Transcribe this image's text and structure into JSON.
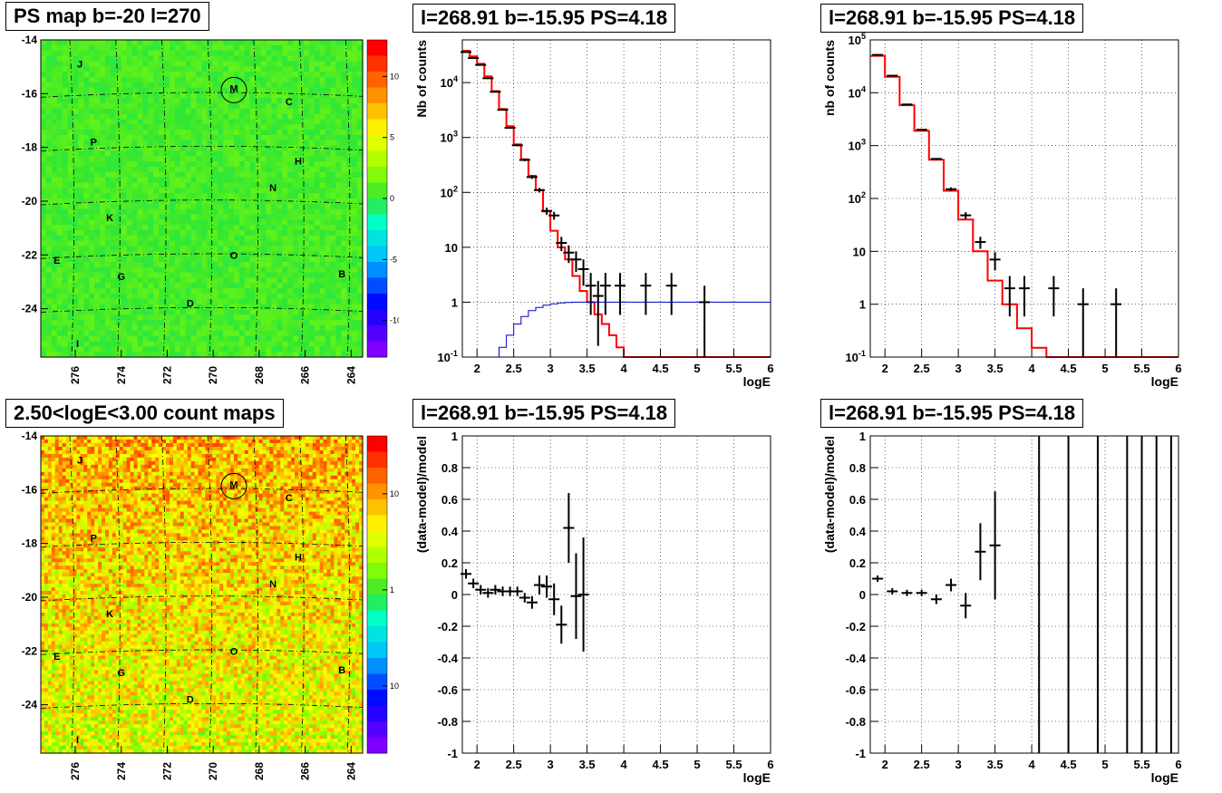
{
  "panels": {
    "tl": {
      "title": "PS map b=-20 l=270",
      "chart_data": {
        "type": "heatmap",
        "title": "PS map b=-20 l=270",
        "x_ticks": [
          "276",
          "274",
          "272",
          "270",
          "268",
          "266",
          "264"
        ],
        "y_ticks": [
          "-14",
          "-16",
          "-18",
          "-20",
          "-22",
          "-24"
        ],
        "xlim": [
          277.5,
          263.5
        ],
        "ylim": [
          -25.8,
          -14
        ],
        "colorbar_ticks": [
          "10",
          "5",
          "0",
          "-5",
          "-10"
        ],
        "colorbar_range": [
          -13,
          13
        ],
        "colormap": "rainbow",
        "sources": [
          {
            "label": "J",
            "l": 275.8,
            "b": -14.9
          },
          {
            "label": "M",
            "l": 269.1,
            "b": -15.8,
            "circled": true
          },
          {
            "label": "C",
            "l": 266.7,
            "b": -16.3
          },
          {
            "label": "P",
            "l": 275.2,
            "b": -17.8
          },
          {
            "label": "H",
            "l": 266.3,
            "b": -18.5
          },
          {
            "label": "N",
            "l": 267.4,
            "b": -19.5
          },
          {
            "label": "K",
            "l": 274.5,
            "b": -20.6
          },
          {
            "label": "E",
            "l": 276.8,
            "b": -22.2
          },
          {
            "label": "O",
            "l": 269.1,
            "b": -22.0
          },
          {
            "label": "G",
            "l": 274.0,
            "b": -22.8
          },
          {
            "label": "B",
            "l": 264.4,
            "b": -22.7
          },
          {
            "label": "D",
            "l": 271.0,
            "b": -23.8
          },
          {
            "label": "I",
            "l": 275.9,
            "b": -25.3
          }
        ],
        "dominant_color": "#30e030"
      }
    },
    "tr_mid": {
      "title": "l=268.91 b=-15.95 PS=4.18",
      "chart_data": {
        "type": "line",
        "title": "l=268.91 b=-15.95 PS=4.18",
        "xlabel": "logE",
        "ylabel": "Nb of counts",
        "xlim": [
          1.8,
          6
        ],
        "ylim": [
          0.1,
          60000
        ],
        "log_y": true,
        "x_ticks": [
          "2",
          "2.5",
          "3",
          "3.5",
          "4",
          "4.5",
          "5",
          "5.5",
          "6"
        ],
        "y_ticks": [
          "10^{-1}",
          "1",
          "10",
          "10^{2}",
          "10^{3}",
          "10^{4}"
        ],
        "grid": true,
        "series": [
          {
            "style": "step",
            "color": "#ff0000",
            "x": [
              1.8,
              1.9,
              2.0,
              2.1,
              2.2,
              2.3,
              2.4,
              2.5,
              2.6,
              2.7,
              2.8,
              2.9,
              3.0,
              3.1,
              3.2,
              3.3,
              3.4,
              3.5,
              3.6,
              3.7,
              3.8,
              3.9,
              4.0,
              4.1,
              4.2,
              4.3,
              6.0
            ],
            "values": [
              38000,
              30000,
              22000,
              13000,
              7000,
              3300,
              1600,
              750,
              400,
              200,
              110,
              45,
              20,
              10,
              6,
              3,
              1.6,
              1,
              0.6,
              0.4,
              0.25,
              0.15,
              0.1,
              0.1,
              0.1,
              0.1,
              0.1
            ]
          },
          {
            "style": "step",
            "color": "#0000cc",
            "x": [
              1.8,
              2.2,
              2.3,
              2.4,
              2.5,
              2.6,
              2.7,
              2.8,
              2.9,
              3.0,
              3.1,
              3.2,
              3.3,
              3.4,
              6.0
            ],
            "values": [
              0.1,
              0.1,
              0.15,
              0.25,
              0.4,
              0.55,
              0.7,
              0.8,
              0.88,
              0.93,
              0.97,
              0.99,
              1.0,
              1.0,
              1.0
            ]
          },
          {
            "style": "errorbar",
            "color": "#000000",
            "x": [
              1.85,
              1.95,
              2.05,
              2.15,
              2.25,
              2.35,
              2.45,
              2.55,
              2.65,
              2.75,
              2.85,
              2.95,
              3.05,
              3.15,
              3.25,
              3.35,
              3.45,
              3.55,
              3.65,
              3.75,
              3.95,
              4.3,
              4.65,
              5.1
            ],
            "values": [
              36000,
              28000,
              21000,
              12000,
              6800,
              3200,
              1500,
              720,
              390,
              190,
              110,
              46,
              38,
              12,
              8,
              6,
              4,
              2,
              1.3,
              2,
              2,
              2,
              2,
              1
            ]
          }
        ]
      }
    },
    "tr_right": {
      "title": "l=268.91 b=-15.95 PS=4.18",
      "chart_data": {
        "type": "line",
        "title": "l=268.91 b=-15.95 PS=4.18",
        "xlabel": "logE",
        "ylabel": "nb of counts",
        "xlim": [
          1.8,
          6
        ],
        "ylim": [
          0.1,
          100000
        ],
        "log_y": true,
        "x_ticks": [
          "2",
          "2.5",
          "3",
          "3.5",
          "4",
          "4.5",
          "5",
          "5.5",
          "6"
        ],
        "y_ticks": [
          "10^{-1}",
          "1",
          "10",
          "10^{2}",
          "10^{3}",
          "10^{4}",
          "10^{5}"
        ],
        "grid": true,
        "series": [
          {
            "style": "step",
            "color": "#ff0000",
            "x": [
              1.8,
              2.0,
              2.2,
              2.4,
              2.6,
              2.8,
              3.0,
              3.2,
              3.4,
              3.6,
              3.8,
              4.0,
              4.2,
              4.4,
              6.0
            ],
            "values": [
              50000,
              20000,
              5800,
              1900,
              540,
              140,
              40,
              10,
              2.8,
              1.0,
              0.35,
              0.15,
              0.1,
              0.1,
              0.1
            ]
          },
          {
            "style": "errorbar",
            "color": "#000000",
            "x": [
              1.9,
              2.1,
              2.3,
              2.5,
              2.7,
              2.9,
              3.1,
              3.3,
              3.5,
              3.7,
              3.9,
              4.3,
              4.7,
              5.15
            ],
            "values": [
              52000,
              21000,
              6000,
              2000,
              560,
              150,
              48,
              15,
              7,
              2,
              2,
              2,
              1,
              1
            ]
          }
        ]
      }
    },
    "bl": {
      "title": "2.50<logE<3.00 count maps",
      "chart_data": {
        "type": "heatmap",
        "title": "2.50<logE<3.00 count maps",
        "x_ticks": [
          "276",
          "274",
          "272",
          "270",
          "268",
          "266",
          "264"
        ],
        "y_ticks": [
          "-14",
          "-16",
          "-18",
          "-20",
          "-22",
          "-24"
        ],
        "xlim": [
          277.5,
          263.5
        ],
        "ylim": [
          -25.8,
          -14
        ],
        "colorbar_ticks": [
          "10",
          "1",
          "10^{-1}"
        ],
        "colorbar_range_log": [
          0.02,
          40
        ],
        "colormap": "rainbow",
        "sources": [
          {
            "label": "J",
            "l": 275.8,
            "b": -14.9
          },
          {
            "label": "M",
            "l": 269.1,
            "b": -15.8,
            "circled": true
          },
          {
            "label": "C",
            "l": 266.7,
            "b": -16.3
          },
          {
            "label": "P",
            "l": 275.2,
            "b": -17.8
          },
          {
            "label": "H",
            "l": 266.3,
            "b": -18.5
          },
          {
            "label": "N",
            "l": 267.4,
            "b": -19.5
          },
          {
            "label": "K",
            "l": 274.5,
            "b": -20.6
          },
          {
            "label": "E",
            "l": 276.8,
            "b": -22.2
          },
          {
            "label": "O",
            "l": 269.1,
            "b": -22.0
          },
          {
            "label": "G",
            "l": 274.0,
            "b": -22.8
          },
          {
            "label": "B",
            "l": 264.4,
            "b": -22.7
          },
          {
            "label": "D",
            "l": 271.0,
            "b": -23.8
          },
          {
            "label": "I",
            "l": 275.9,
            "b": -25.3
          }
        ],
        "dominant_color": "#ff8000"
      }
    },
    "br_mid": {
      "title": "l=268.91 b=-15.95 PS=4.18",
      "chart_data": {
        "type": "scatter",
        "title": "l=268.91 b=-15.95 PS=4.18",
        "xlabel": "logE",
        "ylabel": "(data-model)/model",
        "xlim": [
          1.8,
          6
        ],
        "ylim": [
          -1,
          1
        ],
        "x_ticks": [
          "2",
          "2.5",
          "3",
          "3.5",
          "4",
          "4.5",
          "5",
          "5.5",
          "6"
        ],
        "y_ticks": [
          "1",
          "0.8",
          "0.6",
          "0.4",
          "0.2",
          "0",
          "-0.2",
          "-0.4",
          "-0.6",
          "-0.8",
          "-1"
        ],
        "grid": true,
        "series": [
          {
            "style": "errorbar",
            "color": "#000000",
            "x": [
              1.85,
              1.95,
              2.05,
              2.15,
              2.25,
              2.35,
              2.45,
              2.55,
              2.65,
              2.75,
              2.85,
              2.95,
              3.05,
              3.15,
              3.25,
              3.35,
              3.45
            ],
            "values": [
              0.13,
              0.07,
              0.03,
              0.01,
              0.03,
              0.02,
              0.02,
              0.02,
              -0.02,
              -0.05,
              0.06,
              0.05,
              -0.03,
              -0.19,
              0.42,
              -0.01,
              0.0
            ],
            "errors": [
              0.03,
              0.03,
              0.03,
              0.03,
              0.03,
              0.03,
              0.03,
              0.03,
              0.03,
              0.04,
              0.06,
              0.07,
              0.1,
              0.12,
              0.22,
              0.27,
              0.36
            ]
          }
        ]
      }
    },
    "br_right": {
      "title": "l=268.91 b=-15.95 PS=4.18",
      "chart_data": {
        "type": "scatter",
        "title": "l=268.91 b=-15.95 PS=4.18",
        "xlabel": "logE",
        "ylabel": "(data-model)/model",
        "xlim": [
          1.8,
          6
        ],
        "ylim": [
          -1,
          1
        ],
        "x_ticks": [
          "2",
          "2.5",
          "3",
          "3.5",
          "4",
          "4.5",
          "5",
          "5.5",
          "6"
        ],
        "y_ticks": [
          "1",
          "0.8",
          "0.6",
          "0.4",
          "0.2",
          "0",
          "-0.2",
          "-0.4",
          "-0.6",
          "-0.8",
          "-1"
        ],
        "grid": true,
        "series": [
          {
            "style": "errorbar",
            "color": "#000000",
            "x": [
              1.9,
              2.1,
              2.3,
              2.5,
              2.7,
              2.9,
              3.1,
              3.3,
              3.5
            ],
            "values": [
              0.1,
              0.02,
              0.01,
              0.01,
              -0.03,
              0.06,
              -0.07,
              0.27,
              0.31
            ],
            "errors": [
              0.02,
              0.02,
              0.02,
              0.02,
              0.03,
              0.04,
              0.08,
              0.18,
              0.34
            ]
          },
          {
            "style": "vlines",
            "color": "#000000",
            "x": [
              4.1,
              4.5,
              4.9,
              5.3,
              5.5,
              5.7,
              5.9
            ]
          }
        ]
      }
    }
  }
}
